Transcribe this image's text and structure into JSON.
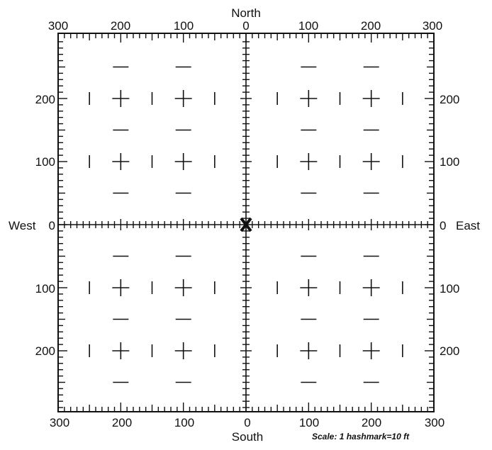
{
  "compass": {
    "north": "North",
    "south": "South",
    "west": "West",
    "east": "East"
  },
  "scale_note": "Scale:  1 hashmark=10 ft",
  "origin_marker_icon": "x-marker-icon",
  "top_labels": [
    "300",
    "200",
    "100",
    "0",
    "100",
    "200",
    "300"
  ],
  "bottom_labels": [
    "300",
    "200",
    "100",
    "0",
    "100",
    "200",
    "300"
  ],
  "left_labels": [
    "200",
    "100",
    "0",
    "100",
    "200"
  ],
  "right_labels": [
    "200",
    "100",
    "0",
    "100",
    "200"
  ],
  "grid": {
    "range_ft": 300,
    "hashmark_ft": 10
  }
}
